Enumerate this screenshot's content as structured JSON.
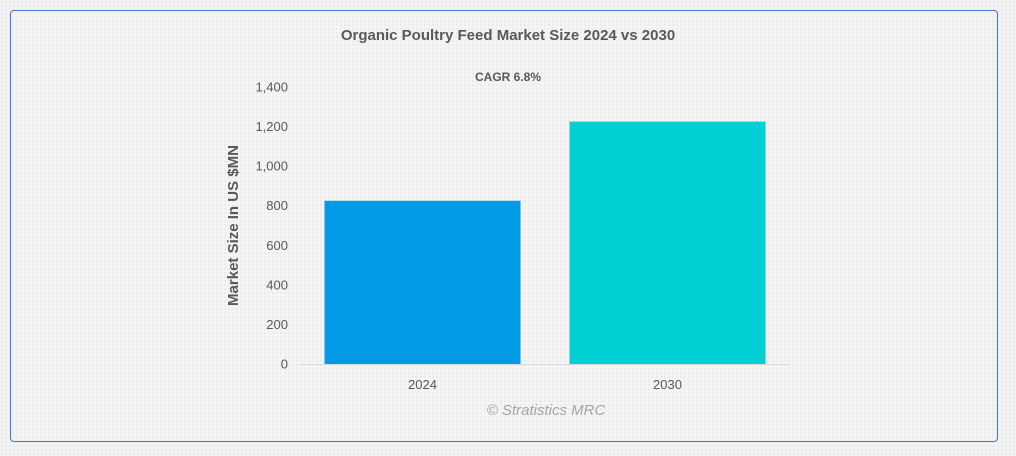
{
  "chart_data": {
    "type": "bar",
    "title": "Organic Poultry Feed Market Size 2024 vs 2030",
    "subtitle": "CAGR 6.8%",
    "categories": [
      "2024",
      "2030"
    ],
    "values": [
      825,
      1225
    ],
    "xlabel": "",
    "ylabel": "Market Size In US $MN",
    "ylim": [
      0,
      1400
    ],
    "yticks": [
      0,
      200,
      400,
      600,
      800,
      1000,
      1200,
      1400
    ],
    "ytick_labels": [
      "0",
      "200",
      "400",
      "600",
      "800",
      "1,000",
      "1,200",
      "1,400"
    ],
    "grid": false,
    "legend": "none",
    "colors": [
      "#039be5",
      "#00d0d4"
    ]
  },
  "watermark": "© Stratistics MRC"
}
